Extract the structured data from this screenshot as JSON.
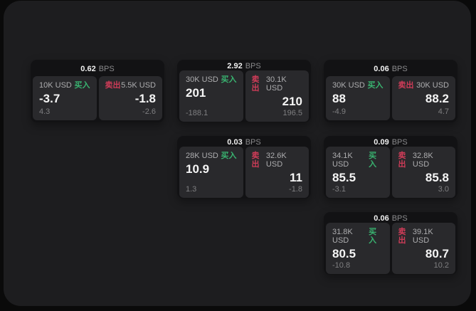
{
  "labels": {
    "bps_unit": "BPS",
    "buy": "买入",
    "sell": "卖出"
  },
  "colors": {
    "buy": "#39b370",
    "sell": "#cf3c58",
    "surface": "#1d1d1f",
    "card": "#121214",
    "panel": "#29292c"
  },
  "cards": [
    {
      "bps": "0.62",
      "buy": {
        "amount": "10K USD",
        "value": "-3.7",
        "sub": "4.3"
      },
      "sell": {
        "amount": "5.5K USD",
        "value": "-1.8",
        "sub": "-2.6"
      }
    },
    {
      "bps": "2.92",
      "buy": {
        "amount": "30K USD",
        "value": "201",
        "sub": "-188.1"
      },
      "sell": {
        "amount": "30.1K USD",
        "value": "210",
        "sub": "196.5"
      }
    },
    {
      "bps": "0.06",
      "buy": {
        "amount": "30K USD",
        "value": "88",
        "sub": "-4.9"
      },
      "sell": {
        "amount": "30K USD",
        "value": "88.2",
        "sub": "4.7"
      }
    },
    {
      "bps": "0.03",
      "buy": {
        "amount": "28K USD",
        "value": "10.9",
        "sub": "1.3"
      },
      "sell": {
        "amount": "32.6K USD",
        "value": "11",
        "sub": "-1.8"
      }
    },
    {
      "bps": "0.09",
      "buy": {
        "amount": "34.1K USD",
        "value": "85.5",
        "sub": "-3.1"
      },
      "sell": {
        "amount": "32.8K USD",
        "value": "85.8",
        "sub": "3.0"
      }
    },
    {
      "bps": "0.06",
      "buy": {
        "amount": "31.8K USD",
        "value": "80.5",
        "sub": "-10.8"
      },
      "sell": {
        "amount": "39.1K USD",
        "value": "80.7",
        "sub": "10.2"
      }
    }
  ]
}
